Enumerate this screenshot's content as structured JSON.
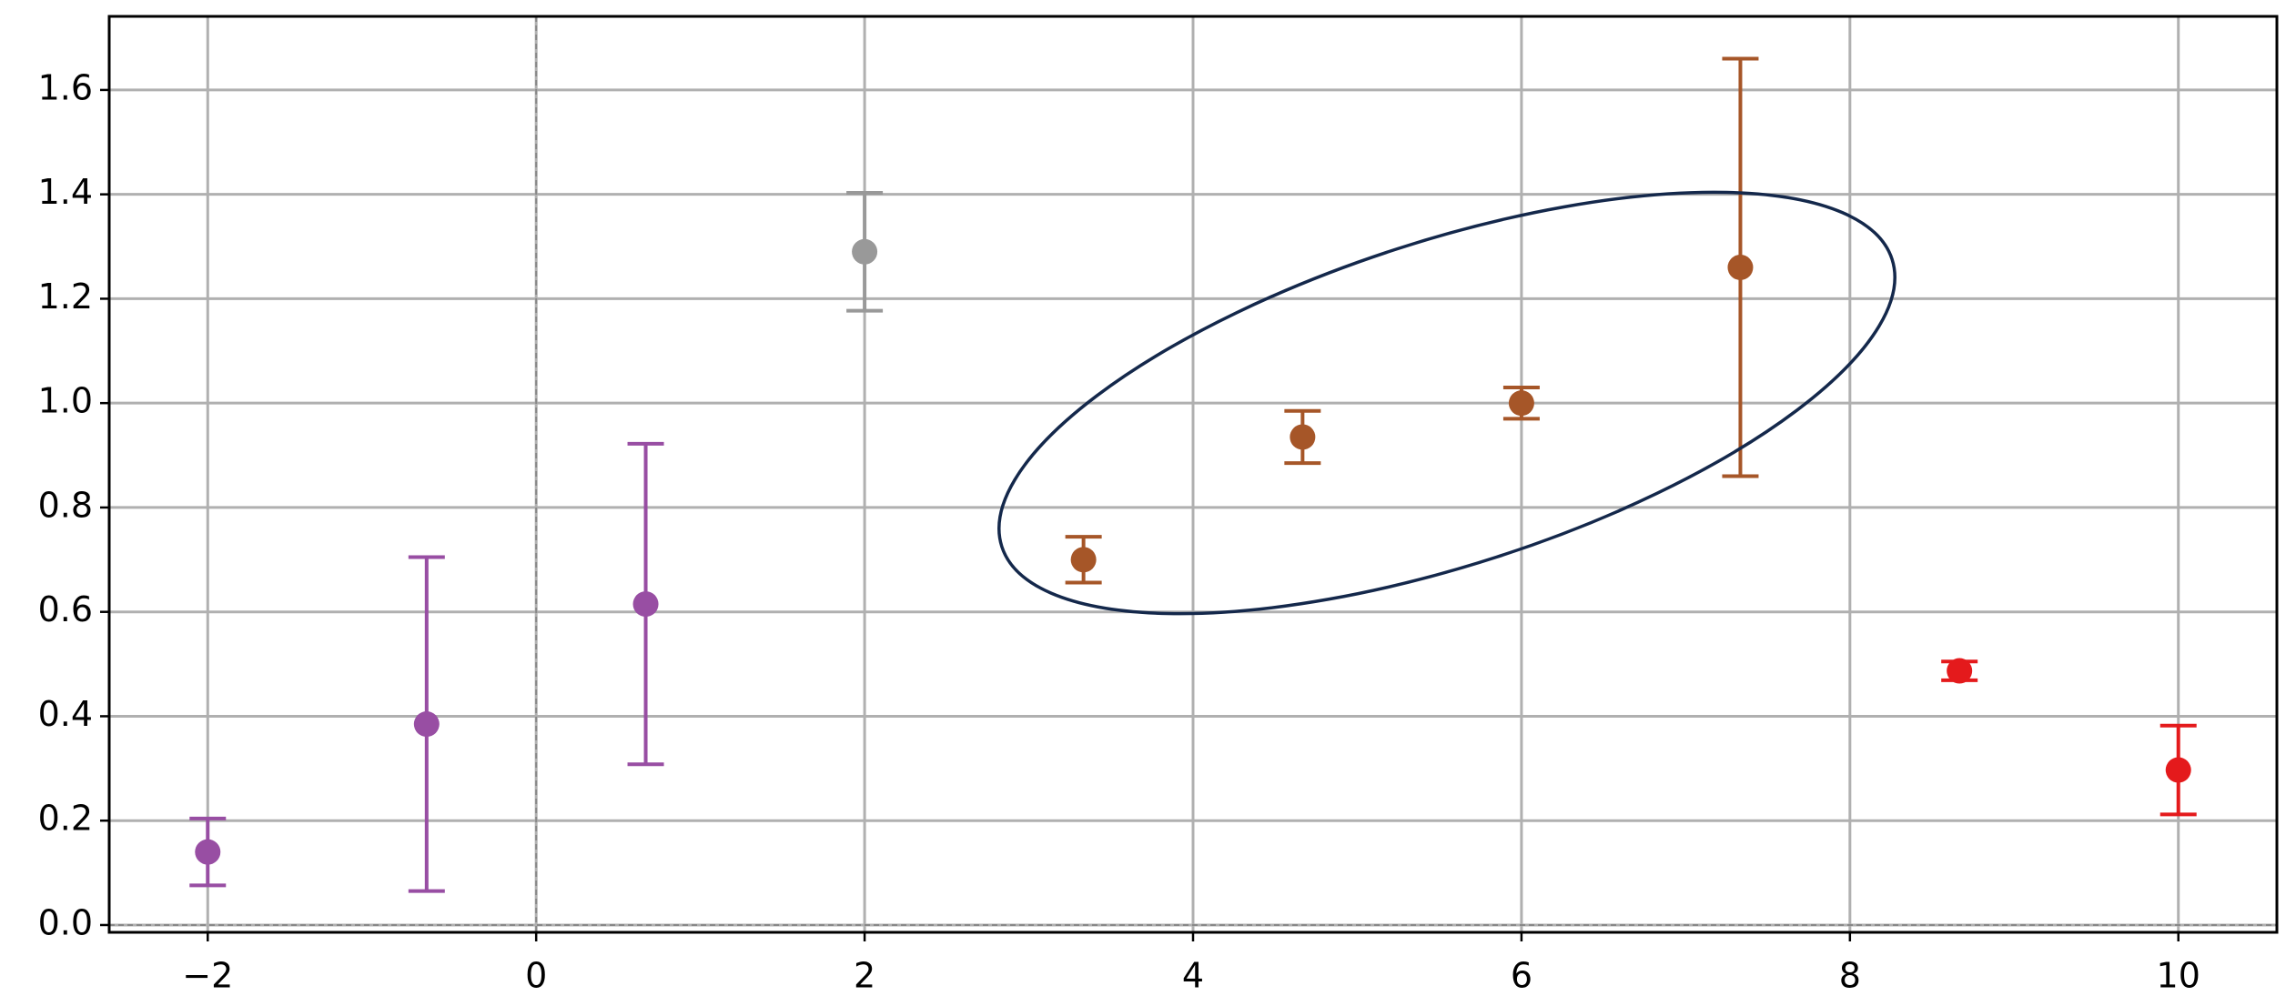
{
  "chart_data": {
    "type": "errorbar",
    "series": [
      {
        "color": "#984ea3",
        "x": [
          -2,
          -0.667,
          0.667
        ],
        "values": [
          0.14,
          0.385,
          0.615
        ],
        "errors": [
          0.064,
          0.32,
          0.307
        ]
      },
      {
        "color": "#999999",
        "x": [
          2
        ],
        "values": [
          1.29
        ],
        "errors": [
          0.113
        ]
      },
      {
        "color": "#a65628",
        "x": [
          3.333,
          4.667,
          6,
          7.333
        ],
        "values": [
          0.7,
          0.935,
          1.0,
          1.26
        ],
        "errors": [
          0.044,
          0.05,
          0.03,
          0.4
        ]
      },
      {
        "color": "#e41a1c",
        "x": [
          8.667,
          10
        ],
        "values": [
          0.487,
          0.297
        ],
        "errors": [
          0.018,
          0.085
        ]
      }
    ],
    "xlim": [
      -2.6,
      10.6
    ],
    "ylim": [
      -0.014,
      1.741
    ],
    "xticks": [
      {
        "value": -2,
        "label": "−2"
      },
      0,
      2,
      4,
      6,
      8,
      10
    ],
    "yticks": [
      {
        "value": 0,
        "label": "0.0"
      },
      0.2,
      0.4,
      0.6,
      0.8,
      {
        "value": 1,
        "label": "1.0"
      },
      1.2,
      1.4,
      1.6
    ],
    "grid": true,
    "reference_lines": {
      "x": [
        0
      ],
      "y": [
        0
      ]
    }
  }
}
